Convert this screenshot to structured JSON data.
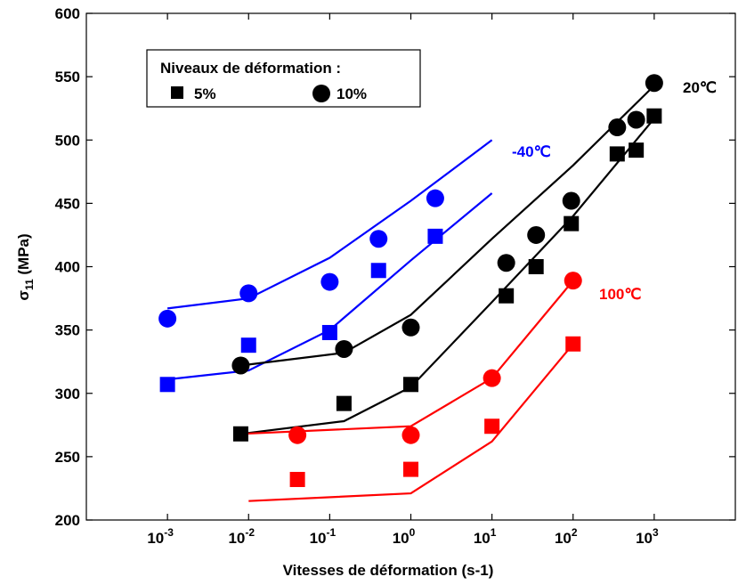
{
  "chart_data": {
    "type": "line",
    "xlabel": "Vitesses de déformation  (s-1)",
    "ylabel_main": "σ",
    "ylabel_sub": "11",
    "ylabel_unit": "(MPa)",
    "xscale": "log",
    "xlim": [
      0.0001,
      10000
    ],
    "ylim": [
      200,
      600
    ],
    "yticks": [
      200,
      250,
      300,
      350,
      400,
      450,
      500,
      550,
      600
    ],
    "xticks": [
      {
        "value": 0.001,
        "base": "10",
        "exp": "-3"
      },
      {
        "value": 0.01,
        "base": "10",
        "exp": "-2"
      },
      {
        "value": 0.1,
        "base": "10",
        "exp": "-1"
      },
      {
        "value": 1,
        "base": "10",
        "exp": "0"
      },
      {
        "value": 10,
        "base": "10",
        "exp": "1"
      },
      {
        "value": 100,
        "base": "10",
        "exp": "2"
      },
      {
        "value": 1000,
        "base": "10",
        "exp": "3"
      }
    ],
    "grid": false,
    "legend": {
      "placement": "top-left",
      "title": "Niveaux de déformation :",
      "entries": [
        {
          "marker": "square",
          "label": "5%"
        },
        {
          "marker": "circle",
          "label": "10%"
        }
      ]
    },
    "groups": [
      {
        "label": "-40℃",
        "color": "#0000ff",
        "series": [
          {
            "strain": "10%",
            "marker": "circle",
            "points": [
              [
                0.001,
                359
              ],
              [
                0.01,
                379
              ],
              [
                0.1,
                388
              ],
              [
                0.4,
                422
              ],
              [
                2,
                454
              ]
            ],
            "model": [
              [
                0.001,
                367
              ],
              [
                0.01,
                375
              ],
              [
                0.1,
                407
              ],
              [
                1,
                452
              ],
              [
                10,
                500
              ]
            ]
          },
          {
            "strain": "5%",
            "marker": "square",
            "points": [
              [
                0.001,
                307
              ],
              [
                0.01,
                338
              ],
              [
                0.1,
                348
              ],
              [
                0.4,
                397
              ],
              [
                2,
                424
              ]
            ],
            "model": [
              [
                0.001,
                311
              ],
              [
                0.01,
                318
              ],
              [
                0.1,
                350
              ],
              [
                1,
                405
              ],
              [
                10,
                458
              ]
            ]
          }
        ]
      },
      {
        "label": "20℃",
        "color": "#000000",
        "series": [
          {
            "strain": "10%",
            "marker": "circle",
            "points": [
              [
                0.008,
                322
              ],
              [
                0.15,
                335
              ],
              [
                1,
                352
              ],
              [
                15,
                403
              ],
              [
                35,
                425
              ],
              [
                95,
                452
              ],
              [
                350,
                510
              ],
              [
                600,
                516
              ],
              [
                1000,
                545
              ]
            ],
            "model": [
              [
                0.008,
                322
              ],
              [
                0.15,
                332
              ],
              [
                1,
                362
              ],
              [
                10,
                422
              ],
              [
                100,
                480
              ],
              [
                1000,
                543
              ]
            ]
          },
          {
            "strain": "5%",
            "marker": "square",
            "points": [
              [
                0.008,
                268
              ],
              [
                0.15,
                292
              ],
              [
                1,
                307
              ],
              [
                15,
                377
              ],
              [
                35,
                400
              ],
              [
                95,
                434
              ],
              [
                350,
                489
              ],
              [
                600,
                492
              ],
              [
                1000,
                519
              ]
            ],
            "model": [
              [
                0.008,
                268
              ],
              [
                0.15,
                278
              ],
              [
                1,
                305
              ],
              [
                10,
                372
              ],
              [
                100,
                440
              ],
              [
                1000,
                517
              ]
            ]
          }
        ]
      },
      {
        "label": "100℃",
        "color": "#ff0000",
        "series": [
          {
            "strain": "10%",
            "marker": "circle",
            "points": [
              [
                0.04,
                267
              ],
              [
                1,
                267
              ],
              [
                10,
                312
              ],
              [
                100,
                389
              ]
            ],
            "model": [
              [
                0.008,
                268
              ],
              [
                1,
                274
              ],
              [
                10,
                312
              ],
              [
                100,
                389
              ]
            ]
          },
          {
            "strain": "5%",
            "marker": "square",
            "points": [
              [
                0.04,
                232
              ],
              [
                1,
                240
              ],
              [
                10,
                274
              ],
              [
                100,
                339
              ]
            ],
            "model": [
              [
                0.01,
                215
              ],
              [
                1,
                221
              ],
              [
                10,
                262
              ],
              [
                100,
                339
              ]
            ]
          }
        ]
      }
    ]
  }
}
